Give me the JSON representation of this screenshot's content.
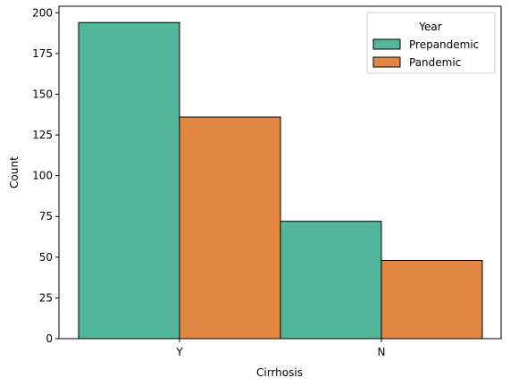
{
  "chart_data": {
    "type": "bar",
    "categories": [
      "Y",
      "N"
    ],
    "series": [
      {
        "name": "Prepandemic",
        "values": [
          194,
          72
        ],
        "color": "#52b69a"
      },
      {
        "name": "Pandemic",
        "values": [
          136,
          48
        ],
        "color": "#e28743"
      }
    ],
    "xlabel": "Cirrhosis",
    "ylabel": "Count",
    "ylim": [
      0,
      204
    ],
    "yticks": [
      0,
      25,
      50,
      75,
      100,
      125,
      150,
      175,
      200
    ],
    "legend": {
      "title": "Year",
      "placement": "top-right"
    },
    "grid": false
  }
}
